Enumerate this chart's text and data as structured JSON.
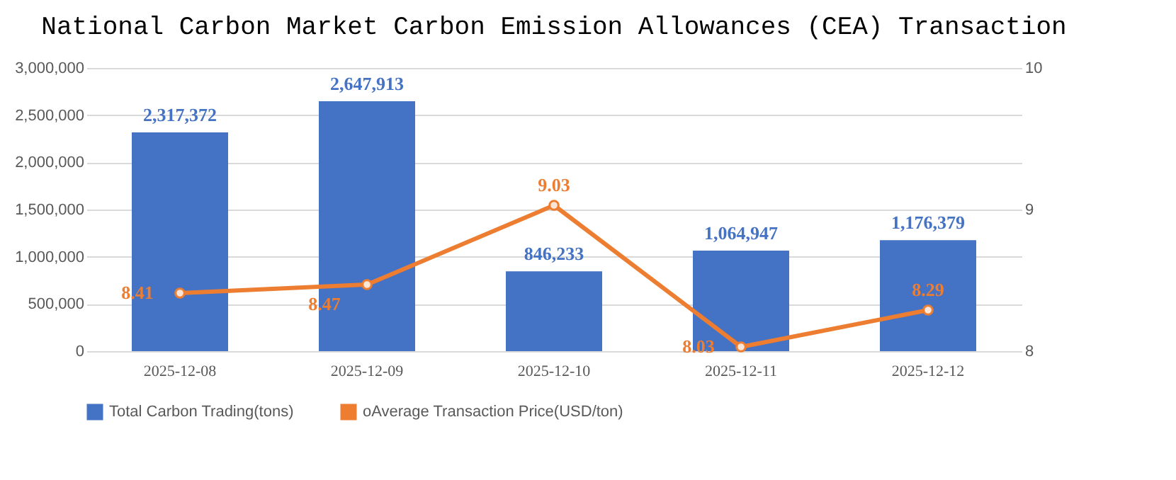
{
  "chart_data": {
    "type": "bar",
    "title": "National Carbon Market Carbon Emission Allowances (CEA) Transaction",
    "categories": [
      "2025-12-08",
      "2025-12-09",
      "2025-12-10",
      "2025-12-11",
      "2025-12-12"
    ],
    "series": [
      {
        "name": "Total Carbon Trading(tons)",
        "color": "#4472c4",
        "values": [
          2317372,
          2647913,
          846233,
          1064947,
          1176379
        ],
        "value_labels": [
          "2,317,372",
          "2,647,913",
          "846,233",
          "1,064,947",
          "1,176,379"
        ]
      },
      {
        "name": "oAverage Transaction Price(USD/ton)",
        "type": "line",
        "axis": "y2",
        "color": "#ed7d31",
        "marker": "circle",
        "values": [
          8.41,
          8.47,
          9.03,
          8.03,
          8.29
        ],
        "value_labels": [
          "8.41",
          "8.47",
          "9.03",
          "8.03",
          "8.29"
        ]
      }
    ],
    "ylim": [
      0,
      3000000
    ],
    "yticks": [
      {
        "value": 0,
        "label": "0"
      },
      {
        "value": 500000,
        "label": "500,000"
      },
      {
        "value": 1000000,
        "label": "1,000,000"
      },
      {
        "value": 1500000,
        "label": "1,500,000"
      },
      {
        "value": 2000000,
        "label": "2,000,000"
      },
      {
        "value": 2500000,
        "label": "2,500,000"
      },
      {
        "value": 3000000,
        "label": "3,000,000"
      }
    ],
    "y2lim": [
      8,
      10
    ],
    "y2ticks": [
      8,
      9,
      10
    ],
    "data_labels": true,
    "grid": "y",
    "legend": "bottom"
  }
}
